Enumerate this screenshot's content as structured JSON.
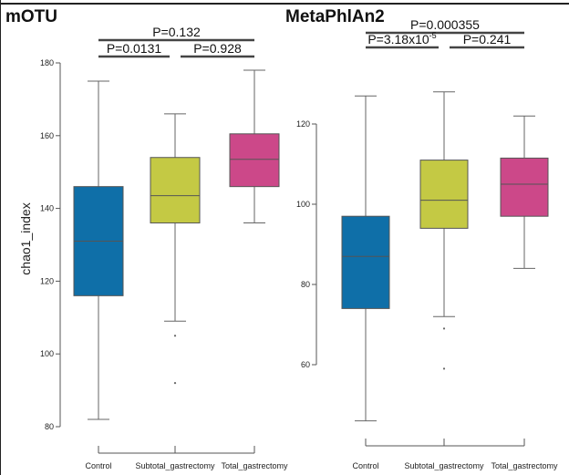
{
  "colors": {
    "Control": "#0f6fa8",
    "Subtotal_gastrectomy": "#c4c944",
    "Total_gastrectomy": "#cc4889"
  },
  "chart_data": [
    {
      "type": "box",
      "title": "mOTU",
      "ylabel": "chao1_index",
      "xlabel": "",
      "ylim": [
        78,
        182
      ],
      "yticks": [
        80,
        100,
        120,
        140,
        160,
        180
      ],
      "categories": [
        "Control",
        "Subtotal_gastrectomy",
        "Total_gastrectomy"
      ],
      "boxes": [
        {
          "category": "Control",
          "whisker_low": 82,
          "q1": 116,
          "median": 131,
          "q3": 146,
          "whisker_high": 175,
          "outliers": []
        },
        {
          "category": "Subtotal_gastrectomy",
          "whisker_low": 109,
          "q1": 136,
          "median": 143.5,
          "q3": 154,
          "whisker_high": 166,
          "outliers": [
            105,
            92
          ]
        },
        {
          "category": "Total_gastrectomy",
          "whisker_low": 136,
          "q1": 146,
          "median": 153.5,
          "q3": 160.5,
          "whisker_high": 178,
          "outliers": []
        }
      ],
      "pvalues": [
        {
          "pair": [
            "Control",
            "Total_gastrectomy"
          ],
          "text": "P=0.132"
        },
        {
          "pair": [
            "Control",
            "Subtotal_gastrectomy"
          ],
          "text": "P=0.0131"
        },
        {
          "pair": [
            "Subtotal_gastrectomy",
            "Total_gastrectomy"
          ],
          "text": "P=0.928"
        }
      ]
    },
    {
      "type": "box",
      "title": "MetaPhlAn2",
      "ylabel": "",
      "xlabel": "",
      "ylim": [
        54,
        124
      ],
      "yticks": [
        60,
        80,
        100,
        120
      ],
      "categories": [
        "Control",
        "Subtotal_gastrectomy",
        "Total_gastrectomy"
      ],
      "boxes": [
        {
          "category": "Control",
          "whisker_low": 46,
          "q1": 74,
          "median": 87,
          "q3": 97,
          "whisker_high": 127,
          "outliers": []
        },
        {
          "category": "Subtotal_gastrectomy",
          "whisker_low": 72,
          "q1": 94,
          "median": 101,
          "q3": 111,
          "whisker_high": 128,
          "outliers": [
            69,
            59
          ]
        },
        {
          "category": "Total_gastrectomy",
          "whisker_low": 84,
          "q1": 97,
          "median": 105,
          "q3": 111.5,
          "whisker_high": 122,
          "outliers": []
        }
      ],
      "pvalues": [
        {
          "pair": [
            "Control",
            "Total_gastrectomy"
          ],
          "text": "P=0.000355"
        },
        {
          "pair": [
            "Control",
            "Subtotal_gastrectomy"
          ],
          "text": "P=3.18x10",
          "exponent": "-5"
        },
        {
          "pair": [
            "Subtotal_gastrectomy",
            "Total_gastrectomy"
          ],
          "text": "P=0.241"
        }
      ]
    }
  ]
}
